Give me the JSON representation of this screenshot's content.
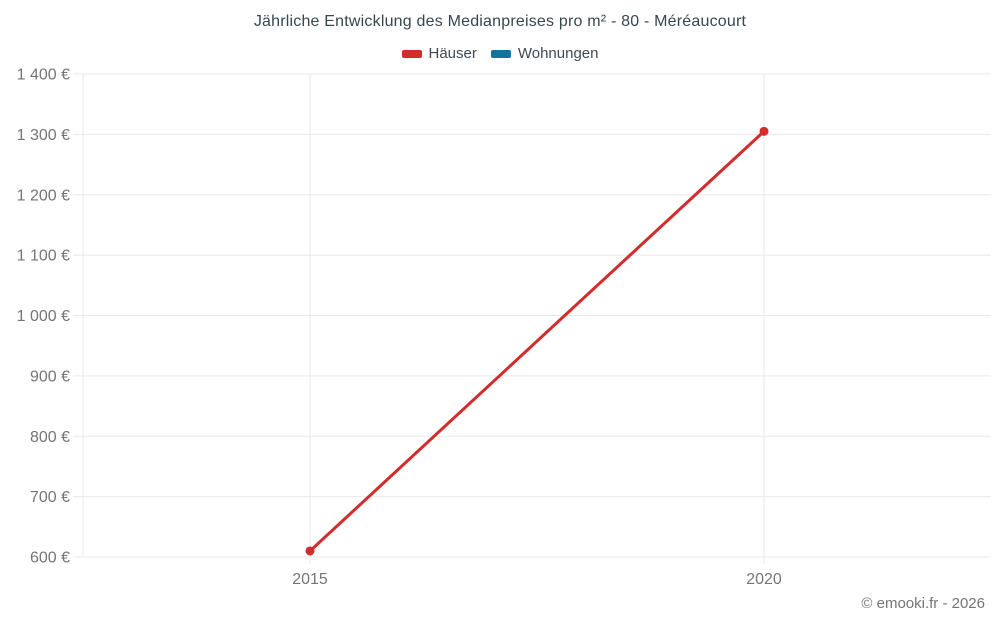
{
  "copyright": "© emooki.fr - 2026",
  "colors": {
    "title": "#37474f",
    "axis_label": "#757575",
    "grid": "#e8e8e8",
    "background": "#ffffff"
  },
  "chart_data": {
    "type": "line",
    "title": "Jährliche Entwicklung des Medianpreises pro m² - 80 - Méréaucourt",
    "xlabel": "",
    "ylabel": "",
    "categories": [
      "2015",
      "2020"
    ],
    "series": [
      {
        "name": "Häuser",
        "color": "#d32c2c",
        "values": [
          610,
          1305
        ]
      },
      {
        "name": "Wohnungen",
        "color": "#1273a3",
        "values": []
      }
    ],
    "ylim": [
      600,
      1400
    ],
    "y_ticks": [
      600,
      700,
      800,
      900,
      1000,
      1100,
      1200,
      1300,
      1400
    ],
    "y_tick_labels": [
      "600 €",
      "700 €",
      "800 €",
      "900 €",
      "1 000 €",
      "1 100 €",
      "1 200 €",
      "1 300 €",
      "1 400 €"
    ],
    "grid": true,
    "legend_position": "top"
  }
}
